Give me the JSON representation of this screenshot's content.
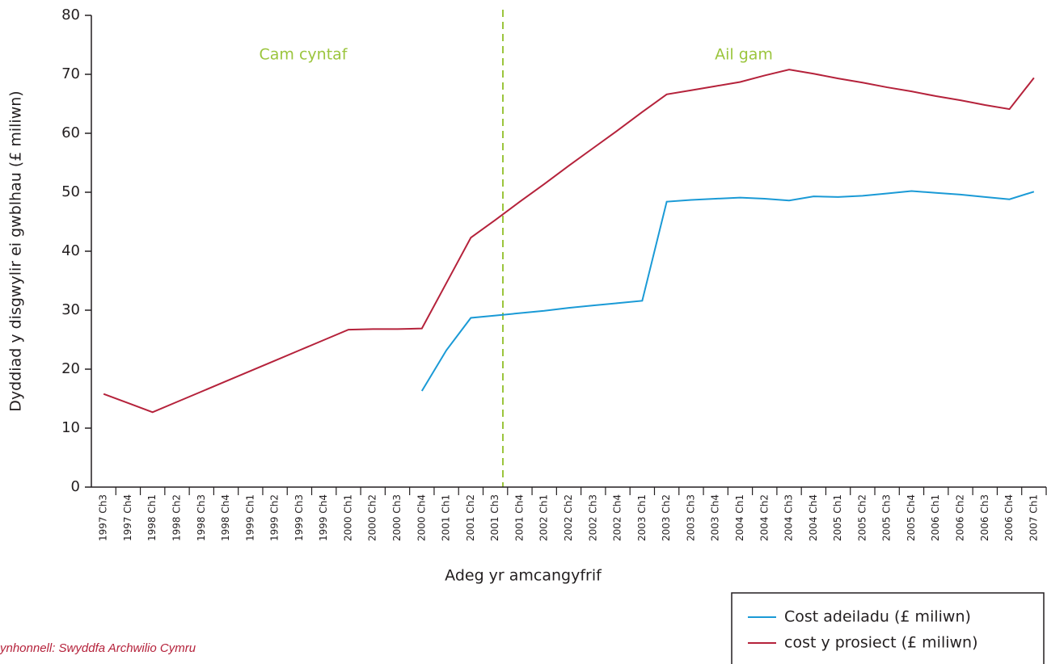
{
  "chart_data": {
    "type": "line",
    "x_label": "Adeg yr amcangyfrif",
    "y_label": "Dyddiad y disgwylir ei gwblhau (£ miliwn)",
    "annotations": [
      "Cam cyntaf",
      "Ail gam"
    ],
    "source": "ynhonnell: Swyddfa Archwilio Cymru",
    "categories": [
      "1997 Ch3",
      "1997 Ch4",
      "1998 Ch1",
      "1998 Ch2",
      "1998 Ch3",
      "1998 Ch4",
      "1999 Ch1",
      "1999 Ch2",
      "1999 Ch3",
      "1999 Ch4",
      "2000 Ch1",
      "2000 Ch2",
      "2000 Ch3",
      "2000 Ch4",
      "2001 Ch1",
      "2001 Ch2",
      "2001 Ch3",
      "2001 Ch4",
      "2002 Ch1",
      "2002 Ch2",
      "2002 Ch3",
      "2002 Ch4",
      "2003 Ch1",
      "2003 Ch2",
      "2003 Ch3",
      "2003 Ch4",
      "2004 Ch1",
      "2004 Ch2",
      "2004 Ch3",
      "2004 Ch4",
      "2005 Ch1",
      "2005 Ch2",
      "2005 Ch3",
      "2005 Ch4",
      "2006 Ch1",
      "2006 Ch2",
      "2006 Ch3",
      "2006 Ch4",
      "2007 Ch1"
    ],
    "series": [
      {
        "name": "Cost adeiladu (£ miliwn)",
        "color": "#1a9ad6",
        "values": [
          null,
          null,
          null,
          null,
          null,
          null,
          null,
          null,
          null,
          null,
          null,
          null,
          null,
          16.3,
          23.2,
          28.7,
          29.1,
          29.5,
          29.9,
          30.4,
          30.8,
          31.2,
          31.6,
          48.4,
          48.7,
          48.9,
          49.1,
          48.9,
          48.6,
          49.3,
          49.2,
          49.4,
          49.8,
          50.2,
          49.9,
          49.6,
          49.2,
          48.8,
          50.1
        ]
      },
      {
        "name": "cost y prosiect (£ miliwn)",
        "color": "#b5223b",
        "values": [
          15.8,
          14.25,
          12.7,
          14.45,
          16.2,
          17.95,
          19.7,
          21.45,
          23.2,
          24.95,
          26.7,
          26.8,
          26.8,
          26.9,
          34.6,
          42.3,
          45.3,
          48.4,
          51.4,
          54.5,
          57.5,
          60.5,
          63.6,
          66.6,
          67.3,
          68.0,
          68.7,
          69.8,
          70.8,
          70.1,
          69.3,
          68.6,
          67.8,
          67.1,
          66.3,
          65.6,
          64.8,
          64.1,
          69.4
        ]
      }
    ],
    "ylim": [
      0,
      80
    ],
    "yticks": [
      0,
      10,
      20,
      30,
      40,
      50,
      60,
      70,
      80
    ]
  }
}
